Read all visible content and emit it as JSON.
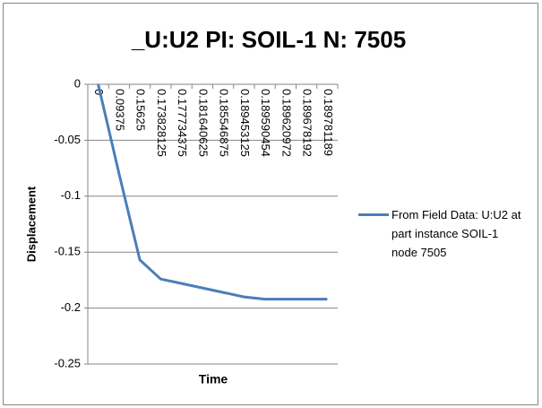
{
  "chart_data": {
    "type": "line",
    "title": "_U:U2 PI: SOIL-1 N: 7505",
    "xlabel": "Time",
    "ylabel": "Displacement",
    "categories": [
      "0",
      "0.09375",
      "0.15625",
      "0.173828125",
      "0.177734375",
      "0.181640625",
      "0.185546875",
      "0.189453125",
      "0.189590454",
      "0.189620972",
      "0.189678192",
      "0.189781189"
    ],
    "series": [
      {
        "name": "From Field Data: U:U2 at part instance SOIL-1 node 7505",
        "color": "#4a7ebb",
        "values": [
          0,
          -0.08,
          -0.157,
          -0.174,
          -0.178,
          -0.182,
          -0.186,
          -0.19,
          -0.192,
          -0.192,
          -0.192,
          -0.192
        ]
      }
    ],
    "ylim": [
      -0.25,
      0
    ],
    "yticks": [
      0,
      -0.05,
      -0.1,
      -0.15,
      -0.2,
      -0.25
    ],
    "grid": true,
    "legend": "right"
  }
}
